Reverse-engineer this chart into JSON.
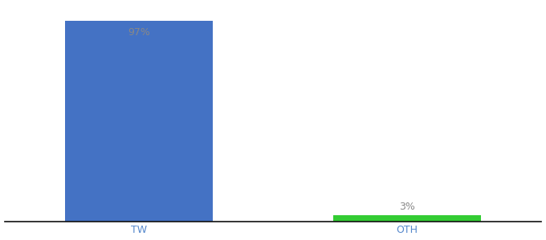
{
  "categories": [
    "TW",
    "OTH"
  ],
  "values": [
    97,
    3
  ],
  "bar_colors": [
    "#4472c4",
    "#33cc33"
  ],
  "value_labels": [
    "97%",
    "3%"
  ],
  "ylim": [
    0,
    105
  ],
  "background_color": "#ffffff",
  "label_color_inside": "#888888",
  "label_color_outside": "#888888",
  "label_fontsize": 9,
  "tick_fontsize": 9,
  "tick_color": "#5588cc",
  "bar_width": 0.55,
  "xlim": [
    -0.5,
    1.5
  ]
}
